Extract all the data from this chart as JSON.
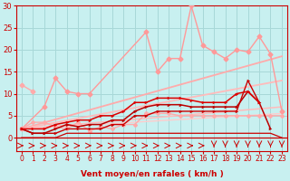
{
  "xlabel": "Vent moyen/en rafales ( km/h )",
  "xlim": [
    -0.5,
    23.5
  ],
  "ylim": [
    -3,
    30
  ],
  "yticks": [
    0,
    5,
    10,
    15,
    20,
    25,
    30
  ],
  "xticks": [
    0,
    1,
    2,
    3,
    4,
    5,
    6,
    7,
    8,
    9,
    10,
    11,
    12,
    13,
    14,
    15,
    16,
    17,
    18,
    19,
    20,
    21,
    22,
    23
  ],
  "bg_color": "#c8f0f0",
  "grid_color": "#a8d8d8",
  "line_diag1": {
    "x": [
      0,
      23
    ],
    "y": [
      2.0,
      18.5
    ],
    "color": "#ffaaaa",
    "lw": 1.3
  },
  "line_diag2": {
    "x": [
      0,
      23
    ],
    "y": [
      2.0,
      13.0
    ],
    "color": "#ffbbbb",
    "lw": 1.3
  },
  "line_diag3": {
    "x": [
      0,
      23
    ],
    "y": [
      2.0,
      7.0
    ],
    "color": "#ffbbbb",
    "lw": 1.1
  },
  "line_diag4": {
    "x": [
      0,
      23
    ],
    "y": [
      2.0,
      5.5
    ],
    "color": "#ffcccc",
    "lw": 1.0
  },
  "series_upper_left": {
    "x": [
      0,
      1
    ],
    "y": [
      12.0,
      10.5
    ],
    "color": "#ffaaaa",
    "lw": 1.0,
    "marker": "D",
    "ms": 2.5
  },
  "series_pink_jagged": {
    "x": [
      0,
      2,
      3,
      4,
      5,
      6,
      11,
      12,
      13,
      14,
      15,
      16,
      17,
      18,
      19,
      20,
      21,
      22,
      23
    ],
    "y": [
      2.0,
      7.0,
      13.5,
      10.5,
      10.0,
      10.0,
      24.0,
      15.0,
      18.0,
      18.0,
      30.0,
      21.0,
      19.5,
      18.0,
      20.0,
      19.5,
      23.0,
      19.0,
      6.0
    ],
    "color": "#ff9999",
    "lw": 1.0,
    "marker": "D",
    "ms": 2.5
  },
  "series_pink_low": {
    "x": [
      0,
      1,
      2,
      3,
      4,
      5,
      6,
      7,
      8,
      9,
      10,
      11,
      12,
      13,
      14,
      15,
      16,
      17,
      18,
      19,
      20,
      21,
      22,
      23
    ],
    "y": [
      2.0,
      3.5,
      3.5,
      2.5,
      2.0,
      3.5,
      1.5,
      2.5,
      2.0,
      3.0,
      3.0,
      5.5,
      5.5,
      5.5,
      5.0,
      5.0,
      5.0,
      5.0,
      5.0,
      5.0,
      5.0,
      5.0,
      5.0,
      5.0
    ],
    "color": "#ffaaaa",
    "lw": 1.0,
    "marker": "D",
    "ms": 2.0
  },
  "series_dark1": {
    "x": [
      0,
      1,
      2,
      3,
      4,
      5,
      6,
      7,
      8,
      9,
      10,
      11,
      12,
      13,
      14,
      15,
      16,
      17,
      18,
      19,
      20,
      21
    ],
    "y": [
      2,
      1,
      1,
      1,
      2,
      2,
      2,
      2,
      3,
      3,
      5,
      5,
      6,
      6,
      6,
      6,
      6,
      6,
      6,
      6,
      13,
      8
    ],
    "color": "#cc0000",
    "lw": 1.0,
    "marker": ">",
    "ms": 2.5
  },
  "series_dark2": {
    "x": [
      0,
      1,
      2,
      3,
      4,
      5,
      6,
      7,
      8,
      9,
      10,
      11,
      12,
      13,
      14,
      15,
      16,
      17,
      18,
      19,
      20,
      21,
      22
    ],
    "y": [
      2,
      1,
      1,
      2,
      3,
      2.5,
      3,
      3,
      4,
      4,
      6,
      7,
      7.5,
      7.5,
      7.5,
      7,
      7,
      7,
      7,
      7,
      10.5,
      8,
      2.0
    ],
    "color": "#bb0000",
    "lw": 1.1,
    "marker": ">",
    "ms": 2.5
  },
  "series_dark3": {
    "x": [
      0,
      1,
      2,
      3,
      4,
      5,
      6,
      7,
      8,
      9,
      10,
      11,
      12,
      13,
      14,
      15,
      16,
      17,
      18,
      19,
      20,
      21
    ],
    "y": [
      2,
      2,
      2,
      3,
      3.5,
      4,
      4,
      5,
      5,
      6,
      8,
      8,
      9,
      9,
      9,
      8.5,
      8,
      8,
      8,
      10,
      10.5,
      8
    ],
    "color": "#dd0000",
    "lw": 1.1,
    "marker": ">",
    "ms": 2.5
  },
  "series_zero": {
    "x": [
      0,
      1,
      2,
      3,
      4,
      5,
      6,
      7,
      8,
      9,
      10,
      11,
      12,
      13,
      14,
      15,
      16,
      17,
      18,
      19,
      20,
      21,
      22,
      23
    ],
    "y": [
      0,
      0,
      0,
      0,
      1,
      1,
      1,
      1,
      1,
      1,
      1,
      1,
      1,
      1,
      1,
      1,
      1,
      1,
      1,
      1,
      1,
      1,
      1,
      0
    ],
    "color": "#cc0000",
    "lw": 0.9
  },
  "wind_arrows_right": [
    17,
    18,
    19,
    20,
    21,
    22,
    23
  ],
  "wind_arrows_left": [
    0,
    1,
    2,
    3,
    4,
    5,
    6,
    7,
    8,
    9,
    10,
    11,
    12,
    13,
    14,
    15,
    16
  ]
}
